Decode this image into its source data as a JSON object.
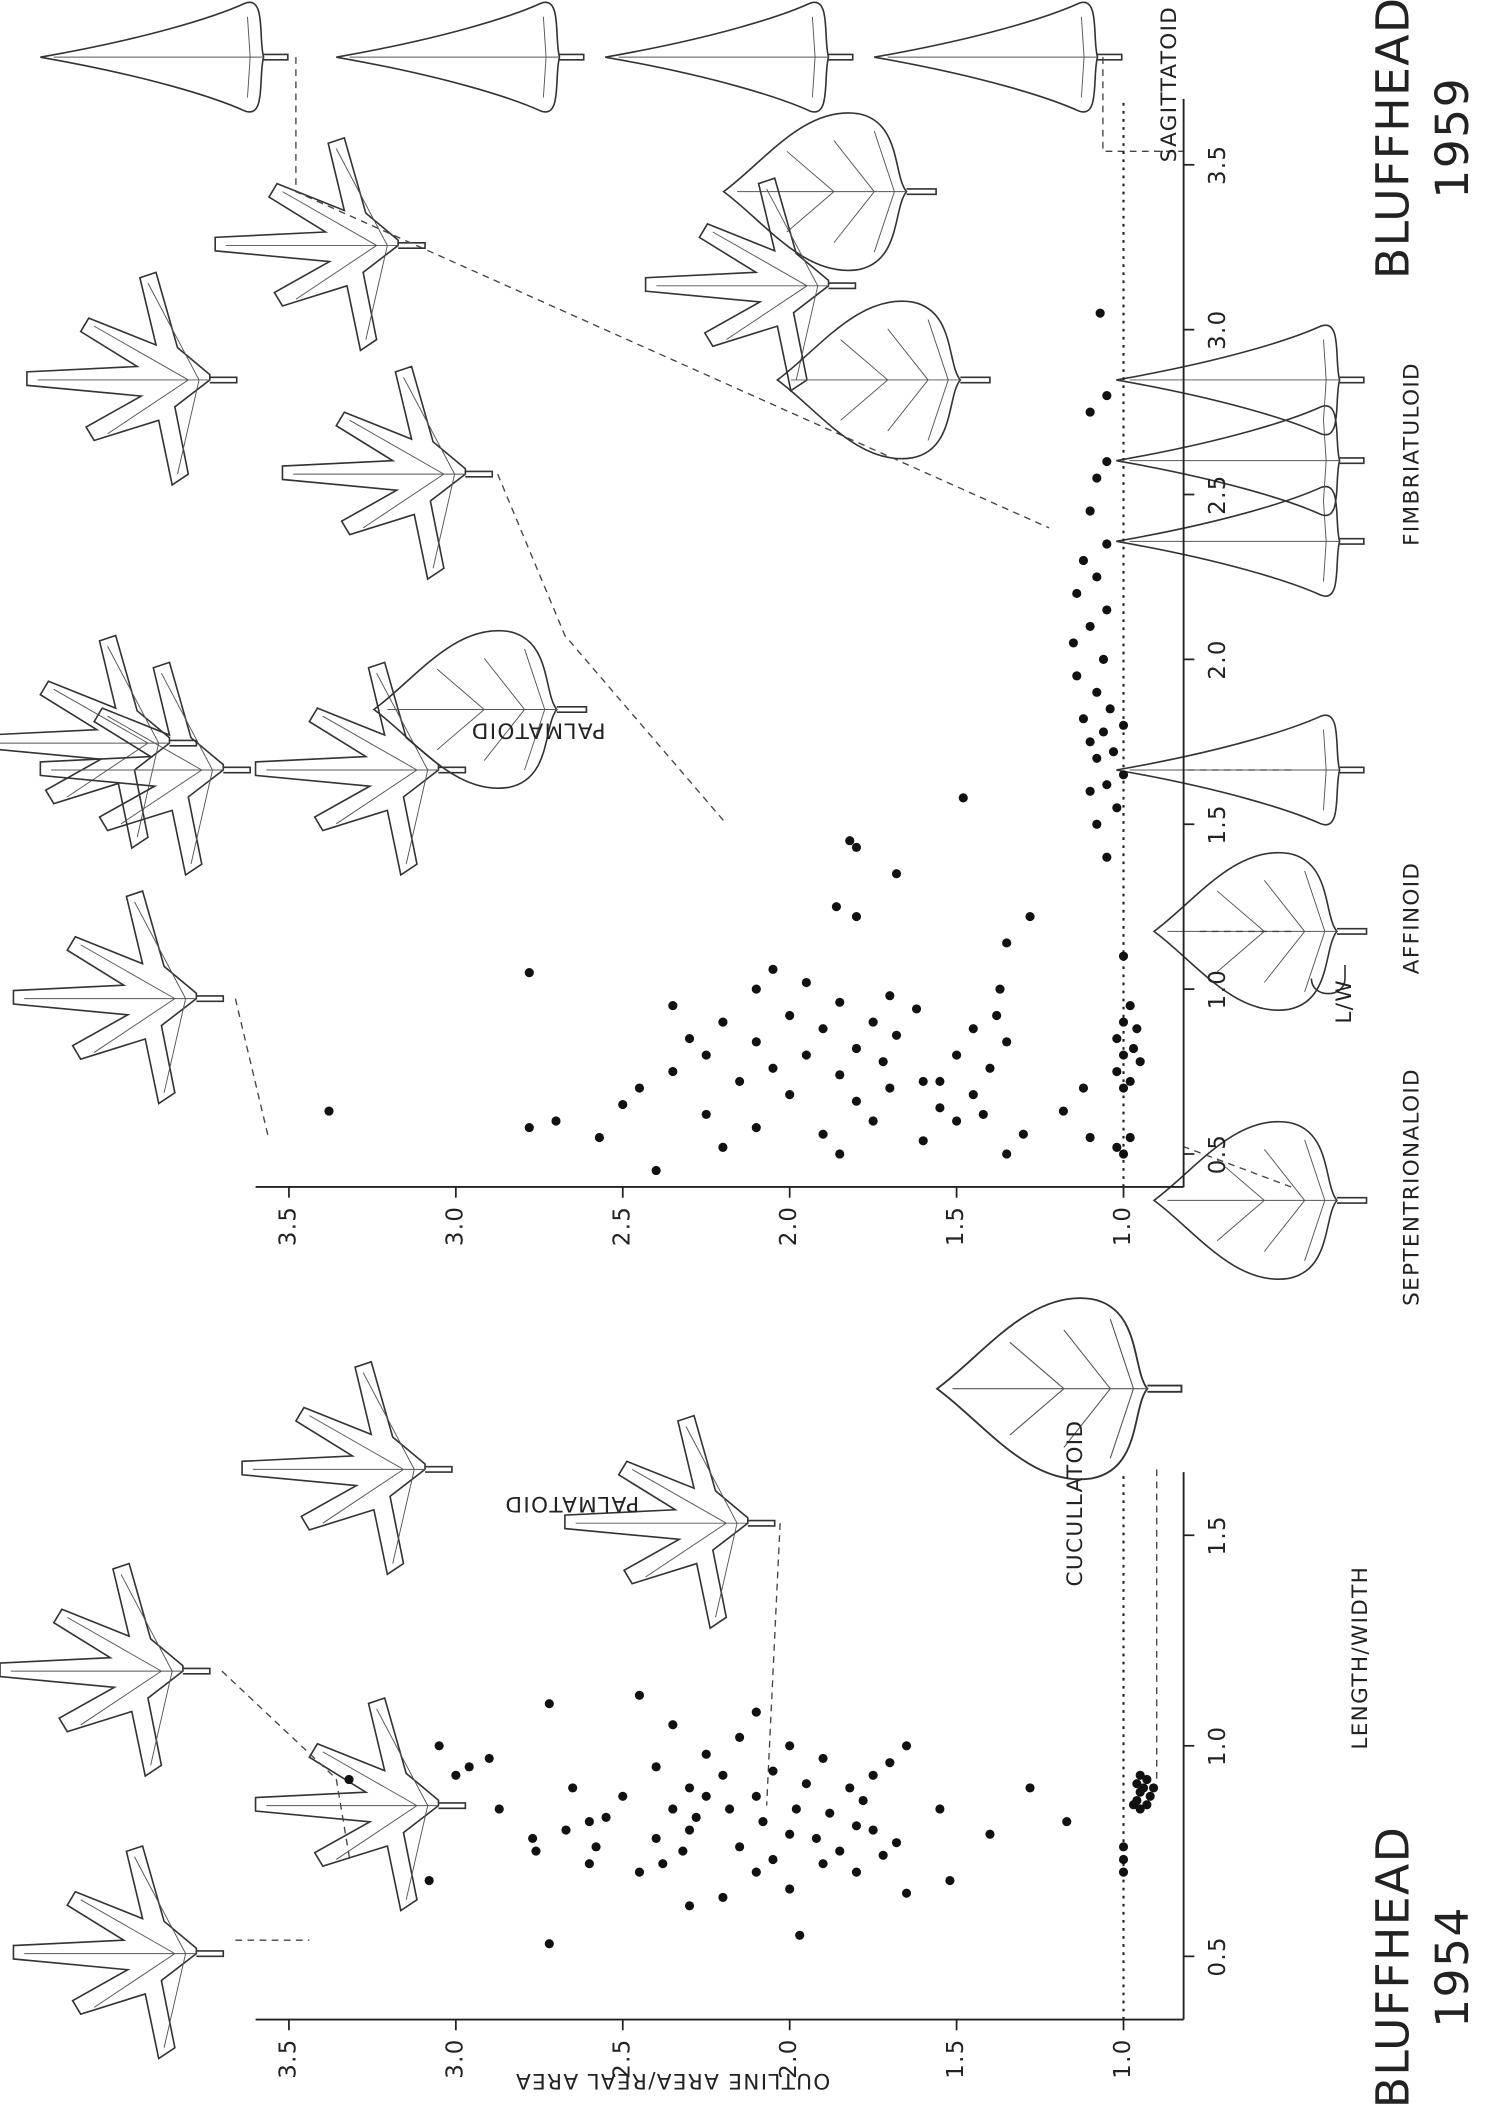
{
  "chart_data": [
    {
      "type": "scatter",
      "title": "BLUFFHEAD",
      "subtitle": "1954",
      "x_label": "LENGTH/WIDTH",
      "y_label": "OUTLINE AREA/REAL AREA",
      "annotations": [
        "PALMATOID",
        "CUCULLATOID"
      ],
      "x": [
        0.53,
        0.92,
        0.68,
        1.1,
        0.93,
        0.95,
        0.97,
        1.0,
        0.85,
        0.78,
        0.75,
        0.8,
        0.72,
        0.76,
        0.82,
        0.83,
        0.9,
        0.88,
        0.7,
        0.72,
        0.75,
        0.78,
        0.8,
        0.83,
        0.85,
        0.88,
        0.9,
        0.93,
        0.95,
        0.98,
        1.02,
        1.05,
        1.08,
        1.12,
        0.7,
        0.73,
        0.76,
        0.79,
        0.82,
        0.85,
        0.88,
        0.91,
        0.94,
        0.97,
        1.0,
        0.72,
        0.75,
        0.78,
        0.81,
        0.84,
        0.87,
        0.9,
        0.93,
        0.96,
        0.7,
        0.74,
        0.77,
        0.8,
        0.64,
        0.66,
        0.62,
        0.85,
        0.55,
        0.85,
        0.79,
        0.68,
        0.65,
        0.82,
        0.9,
        1.0,
        0.7,
        0.73,
        0.76,
        0.85,
        0.86,
        0.87,
        0.88,
        0.89,
        0.9,
        0.91,
        0.92,
        0.86,
        0.9,
        0.93
      ],
      "values": [
        2.72,
        3.32,
        3.08,
        2.72,
        3.0,
        2.96,
        2.9,
        3.05,
        2.87,
        2.77,
        2.76,
        2.67,
        2.6,
        2.58,
        2.6,
        2.55,
        2.65,
        2.5,
        2.45,
        2.38,
        2.32,
        2.4,
        2.3,
        2.28,
        2.35,
        2.25,
        2.3,
        2.2,
        2.4,
        2.25,
        2.15,
        2.35,
        2.1,
        2.45,
        2.1,
        2.05,
        2.15,
        2.0,
        2.08,
        1.98,
        2.1,
        1.95,
        2.05,
        1.9,
        2.0,
        1.9,
        1.85,
        1.92,
        1.8,
        1.88,
        1.78,
        1.82,
        1.75,
        1.7,
        1.8,
        1.72,
        1.68,
        1.75,
        2.2,
        2.0,
        2.3,
        2.18,
        1.97,
        1.55,
        1.4,
        1.52,
        1.65,
        1.17,
        1.28,
        1.65,
        1.0,
        1.0,
        1.0,
        0.95,
        0.93,
        0.96,
        0.92,
        0.95,
        0.94,
        0.96,
        0.93,
        0.97,
        0.91,
        0.95
      ],
      "color": "#111111",
      "xlim": [
        0.35,
        1.65
      ],
      "ylim": [
        0.82,
        3.6
      ],
      "xticks": [
        0.5,
        {
          "value": 1,
          "label": "1.0"
        },
        1.5
      ],
      "yticks": [
        {
          "value": 1,
          "label": "1.0"
        },
        1.5,
        {
          "value": 2,
          "label": "2.0"
        },
        2.5,
        {
          "value": 3,
          "label": "3.0"
        },
        3.5
      ],
      "baseline": 1
    },
    {
      "type": "scatter",
      "title": "BLUFFHEAD",
      "subtitle": "1959",
      "x_label": "L/W",
      "annotations": [
        "PALMATOID",
        "SEPTENTRIONALOID",
        "AFFINOID",
        "FIMBRIATULOID",
        "SAGITTATOID"
      ],
      "x": [
        0.63,
        0.58,
        1.05,
        1.45,
        1.43,
        1.58,
        1.14,
        1.0,
        0.63,
        0.72,
        1.22,
        1.25,
        1.35,
        1.22,
        0.45,
        0.55,
        0.6,
        0.65,
        0.7,
        0.75,
        0.8,
        0.85,
        0.9,
        0.95,
        1.0,
        0.52,
        0.58,
        0.62,
        0.68,
        0.72,
        0.76,
        0.8,
        0.84,
        0.88,
        0.92,
        0.96,
        1.02,
        1.06,
        0.5,
        0.56,
        0.6,
        0.66,
        0.7,
        0.74,
        0.78,
        0.82,
        0.86,
        0.9,
        0.94,
        0.98,
        0.54,
        0.6,
        0.64,
        0.68,
        0.72,
        0.76,
        0.8,
        0.84,
        0.88,
        0.92,
        0.5,
        0.56,
        0.62,
        0.55,
        0.7,
        0.5,
        0.52,
        0.55,
        0.7,
        0.72,
        0.75,
        0.78,
        0.8,
        0.82,
        0.85,
        0.88,
        0.9,
        0.95,
        1.1,
        1.4,
        1.5,
        1.55,
        1.6,
        1.62,
        1.65,
        1.7,
        1.72,
        1.75,
        1.78,
        1.8,
        1.82,
        1.85,
        1.9,
        1.95,
        2.0,
        2.05,
        2.1,
        2.15,
        2.2,
        2.25,
        2.3,
        2.35,
        2.45,
        2.55,
        2.6,
        2.75,
        2.8,
        3.05
      ],
      "values": [
        3.38,
        2.78,
        2.78,
        1.82,
        1.8,
        1.48,
        1.35,
        1.37,
        1.18,
        1.55,
        1.8,
        1.86,
        1.68,
        1.28,
        2.4,
        2.57,
        2.7,
        2.5,
        2.45,
        2.35,
        2.25,
        2.3,
        2.2,
        2.35,
        2.1,
        2.2,
        2.1,
        2.25,
        2.0,
        2.15,
        2.05,
        1.95,
        2.1,
        1.9,
        2.0,
        1.85,
        1.95,
        2.05,
        1.85,
        1.9,
        1.75,
        1.8,
        1.7,
        1.85,
        1.72,
        1.8,
        1.68,
        1.75,
        1.62,
        1.7,
        1.6,
        1.5,
        1.55,
        1.45,
        1.6,
        1.4,
        1.5,
        1.35,
        1.45,
        1.38,
        1.35,
        1.3,
        1.42,
        1.1,
        1.12,
        1.0,
        1.02,
        0.98,
        1.0,
        0.98,
        1.02,
        0.95,
        1.0,
        0.97,
        1.02,
        0.96,
        1.0,
        0.98,
        1.0,
        1.05,
        1.08,
        1.02,
        1.1,
        1.05,
        1.0,
        1.08,
        1.03,
        1.1,
        1.06,
        1.0,
        1.12,
        1.04,
        1.08,
        1.14,
        1.06,
        1.15,
        1.1,
        1.05,
        1.14,
        1.08,
        1.12,
        1.05,
        1.1,
        1.08,
        1.05,
        1.1,
        1.05,
        1.07
      ],
      "color": "#111111",
      "xlim": [
        0.4,
        3.7
      ],
      "ylim": [
        0.82,
        3.6
      ],
      "xticks": [
        0.5,
        {
          "value": 1,
          "label": "1.0"
        },
        1.5,
        {
          "value": 2,
          "label": "2.0"
        },
        2.5,
        {
          "value": 3,
          "label": "3.0"
        },
        3.5
      ],
      "yticks": [
        {
          "value": 1,
          "label": "1.0"
        },
        1.5,
        {
          "value": 2,
          "label": "2.0"
        },
        2.5,
        {
          "value": 3,
          "label": "3.0"
        },
        3.5
      ],
      "baseline": 1
    }
  ]
}
